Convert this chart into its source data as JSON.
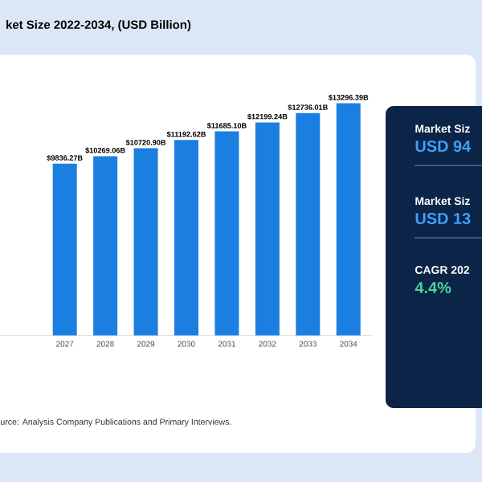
{
  "chart_data": {
    "type": "bar",
    "title": "ket Size 2022-2034, (USD Billion)",
    "categories": [
      "2027",
      "2028",
      "2029",
      "2030",
      "2031",
      "2032",
      "2033",
      "2034"
    ],
    "values": [
      9836.27,
      10269.06,
      10720.9,
      11192.62,
      11685.1,
      12199.24,
      12736.01,
      13296.39
    ],
    "value_labels": [
      "$9836.27B",
      "$10269.06B",
      "$10720.90B",
      "$11192.62B",
      "$11685.10B",
      "$12199.24B",
      "$12736.01B",
      "$13296.39B"
    ],
    "color": "#1a7fe0",
    "tick_labels": "x",
    "annotations": [
      "urce: Analysis Company Publications and Primary Interviews.",
      "Market Siz",
      "USD 94",
      "Market Siz",
      "USD 13",
      "CAGR 202",
      "4.4%"
    ]
  }
}
